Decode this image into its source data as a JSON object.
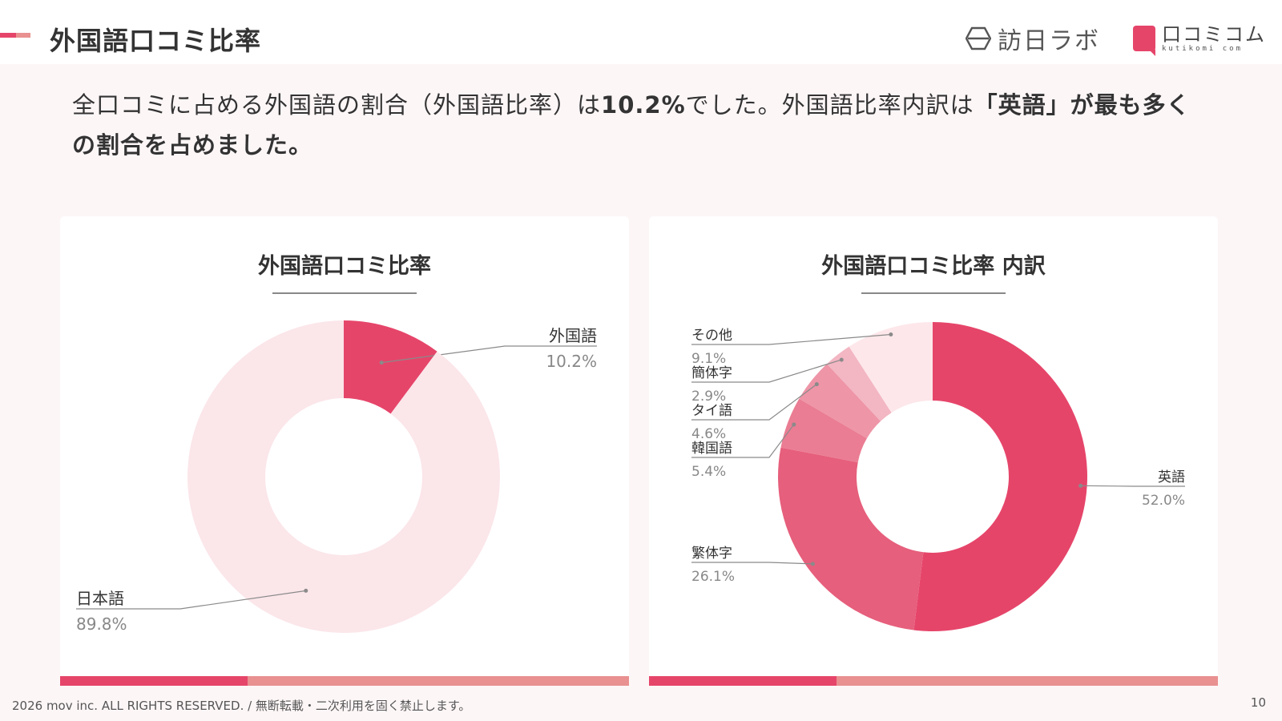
{
  "colors": {
    "accent": "#e6456a",
    "accent_light": "#e99090",
    "pale": "#fbe6ea",
    "background": "#fdf6f7",
    "leader": "#8a8a8a"
  },
  "header": {
    "title": "外国語口コミ比率",
    "logo1_icon": "hexagon-icon",
    "logo1_text": "訪日ラボ",
    "logo2_icon": "speech-bubble-icon",
    "logo2_text": "口コミコム",
    "logo2_sub": "kutikomi com"
  },
  "lead": {
    "part1": "全口コミに占める外国語の割合（外国語比率）は",
    "highlight1": "10.2%",
    "part2": "でした。外国語比率内訳は",
    "highlight2": "「英語」が最も多くの割合を占めました。"
  },
  "chart_data": [
    {
      "type": "pie",
      "title": "外国語口コミ比率",
      "donut": true,
      "slices": [
        {
          "label": "外国語",
          "value": 10.2,
          "display": "10.2%"
        },
        {
          "label": "日本語",
          "value": 89.8,
          "display": "89.8%"
        }
      ]
    },
    {
      "type": "pie",
      "title": "外国語口コミ比率 内訳",
      "donut": true,
      "slices": [
        {
          "label": "英語",
          "value": 52.0,
          "display": "52.0%"
        },
        {
          "label": "繁体字",
          "value": 26.1,
          "display": "26.1%"
        },
        {
          "label": "韓国語",
          "value": 5.4,
          "display": "5.4%"
        },
        {
          "label": "タイ語",
          "value": 4.6,
          "display": "4.6%"
        },
        {
          "label": "簡体字",
          "value": 2.9,
          "display": "2.9%"
        },
        {
          "label": "その他",
          "value": 9.1,
          "display": "9.1%"
        }
      ]
    }
  ],
  "footer": {
    "copyright": "2026 mov inc. ALL RIGHTS RESERVED. / 無断転載・二次利用を固く禁止します。",
    "page": "10"
  }
}
